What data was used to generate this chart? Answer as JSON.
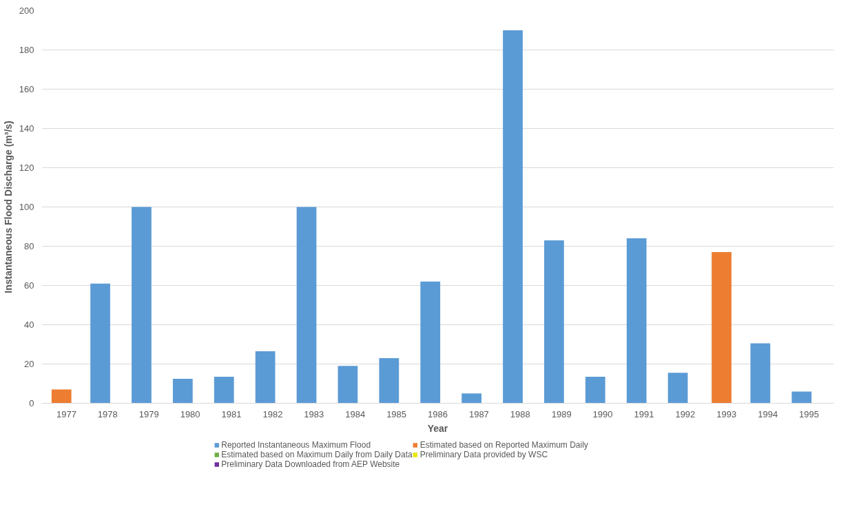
{
  "chart_data": {
    "type": "bar",
    "xlabel": "Year",
    "ylabel": "Instantaneous Flood Discharge (m³/s)",
    "categories": [
      "1977",
      "1978",
      "1979",
      "1980",
      "1981",
      "1982",
      "1983",
      "1984",
      "1985",
      "1986",
      "1987",
      "1988",
      "1989",
      "1990",
      "1991",
      "1992",
      "1993",
      "1994",
      "1995"
    ],
    "series": [
      {
        "name": "Reported Instantaneous Maximum Flood",
        "color": "#5b9bd5",
        "values": [
          null,
          61,
          100,
          12.5,
          13.5,
          26.5,
          100,
          19,
          23,
          62,
          5,
          190,
          83,
          13.5,
          84,
          15.5,
          null,
          30.5,
          6
        ]
      },
      {
        "name": "Estimated based on Reported Maximum Daily",
        "color": "#ed7d31",
        "values": [
          7,
          null,
          null,
          null,
          null,
          null,
          null,
          null,
          null,
          null,
          null,
          null,
          null,
          null,
          null,
          null,
          77,
          null,
          null
        ]
      },
      {
        "name": "Estimated based on Maximum Daily from Daily Data",
        "color": "#70ad47",
        "values": [
          null,
          null,
          null,
          null,
          null,
          null,
          null,
          null,
          null,
          null,
          null,
          null,
          null,
          null,
          null,
          null,
          null,
          null,
          null
        ]
      },
      {
        "name": "Preliminary Data provided by WSC",
        "color": "#e6e600",
        "values": [
          null,
          null,
          null,
          null,
          null,
          null,
          null,
          null,
          null,
          null,
          null,
          null,
          null,
          null,
          null,
          null,
          null,
          null,
          null
        ]
      },
      {
        "name": "Preliminary Data Downloaded from AEP Website",
        "color": "#7030a0",
        "values": [
          null,
          null,
          null,
          null,
          null,
          null,
          null,
          null,
          null,
          null,
          null,
          null,
          null,
          null,
          null,
          null,
          null,
          null,
          null
        ]
      }
    ],
    "ylim": [
      0,
      200
    ],
    "yticks": [
      0,
      20,
      40,
      60,
      80,
      100,
      120,
      140,
      160,
      180,
      200
    ],
    "grid": "y",
    "legend": "bottom"
  }
}
